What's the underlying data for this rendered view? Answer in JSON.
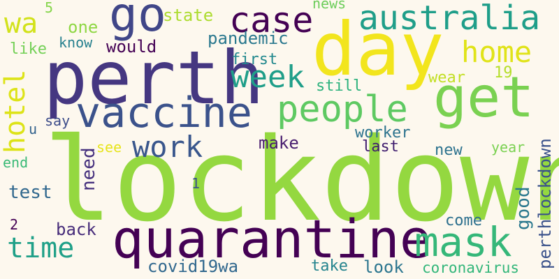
{
  "words": [
    {
      "id": "lockdown",
      "text": "lockdown",
      "color": "#94d840"
    },
    {
      "id": "perth",
      "text": "perth",
      "color": "#453781"
    },
    {
      "id": "day",
      "text": "day",
      "color": "#f2e51d"
    },
    {
      "id": "get",
      "text": "get",
      "color": "#7ad151"
    },
    {
      "id": "quarantine",
      "text": "quarantine",
      "color": "#440154"
    },
    {
      "id": "vaccine",
      "text": "vaccine",
      "color": "#3b528b"
    },
    {
      "id": "go",
      "text": "go",
      "color": "#404688"
    },
    {
      "id": "australia",
      "text": "australia",
      "color": "#1f9e89"
    },
    {
      "id": "people",
      "text": "people",
      "color": "#5ec962"
    },
    {
      "id": "mask",
      "text": "mask",
      "color": "#35b779"
    },
    {
      "id": "case",
      "text": "case",
      "color": "#440154"
    },
    {
      "id": "home",
      "text": "home",
      "color": "#e0e318"
    },
    {
      "id": "week",
      "text": "week",
      "color": "#1f9e89"
    },
    {
      "id": "time",
      "text": "time",
      "color": "#1fa088"
    },
    {
      "id": "work",
      "text": "work",
      "color": "#39568c"
    },
    {
      "id": "wa",
      "text": "wa",
      "color": "#d2e21b"
    },
    {
      "id": "hotel",
      "text": "hotel",
      "color": "#dde318"
    },
    {
      "id": "covid19wa",
      "text": "covid19wa",
      "color": "#31688e"
    },
    {
      "id": "pandemic",
      "text": "pandemic",
      "color": "#2a788e"
    },
    {
      "id": "state",
      "text": "state",
      "color": "#addc30"
    },
    {
      "id": "would",
      "text": "would",
      "color": "#440154"
    },
    {
      "id": "first",
      "text": "first",
      "color": "#23898e"
    },
    {
      "id": "still",
      "text": "still",
      "color": "#2db27d"
    },
    {
      "id": "news",
      "text": "news",
      "color": "#6ccd5a"
    },
    {
      "id": "one",
      "text": "one",
      "color": "#8fd744"
    },
    {
      "id": "like",
      "text": "like",
      "color": "#73d056"
    },
    {
      "id": "know",
      "text": "know",
      "color": "#27808e"
    },
    {
      "id": "say",
      "text": "say",
      "color": "#3d4d8a"
    },
    {
      "id": "u",
      "text": "u",
      "color": "#33638d"
    },
    {
      "id": "see",
      "text": "see",
      "color": "#e7e419"
    },
    {
      "id": "need",
      "text": "need",
      "color": "#46307e"
    },
    {
      "id": "make",
      "text": "make",
      "color": "#481d6f"
    },
    {
      "id": "worker",
      "text": "worker",
      "color": "#2c738e"
    },
    {
      "id": "last",
      "text": "last",
      "color": "#3f1d6e"
    },
    {
      "id": "new",
      "text": "new",
      "color": "#2c728e"
    },
    {
      "id": "year",
      "text": "year",
      "color": "#7ad151"
    },
    {
      "id": "perthlockdown",
      "text": "perthlockdown",
      "color": "#3b528b"
    },
    {
      "id": "good",
      "text": "good",
      "color": "#2a788e"
    },
    {
      "id": "test",
      "text": "test",
      "color": "#31688e"
    },
    {
      "id": "back",
      "text": "back",
      "color": "#472c7a"
    },
    {
      "id": "come",
      "text": "come",
      "color": "#2d708e"
    },
    {
      "id": "take",
      "text": "take",
      "color": "#25848e"
    },
    {
      "id": "look",
      "text": "look",
      "color": "#2b758e"
    },
    {
      "id": "coronavirus",
      "text": "coronavirus",
      "color": "#32b67a"
    },
    {
      "id": "wear",
      "text": "wear",
      "color": "#c2df23"
    },
    {
      "id": "nineteen",
      "text": "19",
      "color": "#b5de2b"
    },
    {
      "id": "five",
      "text": "5",
      "color": "#85d54a"
    },
    {
      "id": "end",
      "text": "end",
      "color": "#3aba76"
    },
    {
      "id": "one-digit",
      "text": "1",
      "color": "#3b528b"
    },
    {
      "id": "two-digit",
      "text": "2",
      "color": "#440154"
    }
  ]
}
